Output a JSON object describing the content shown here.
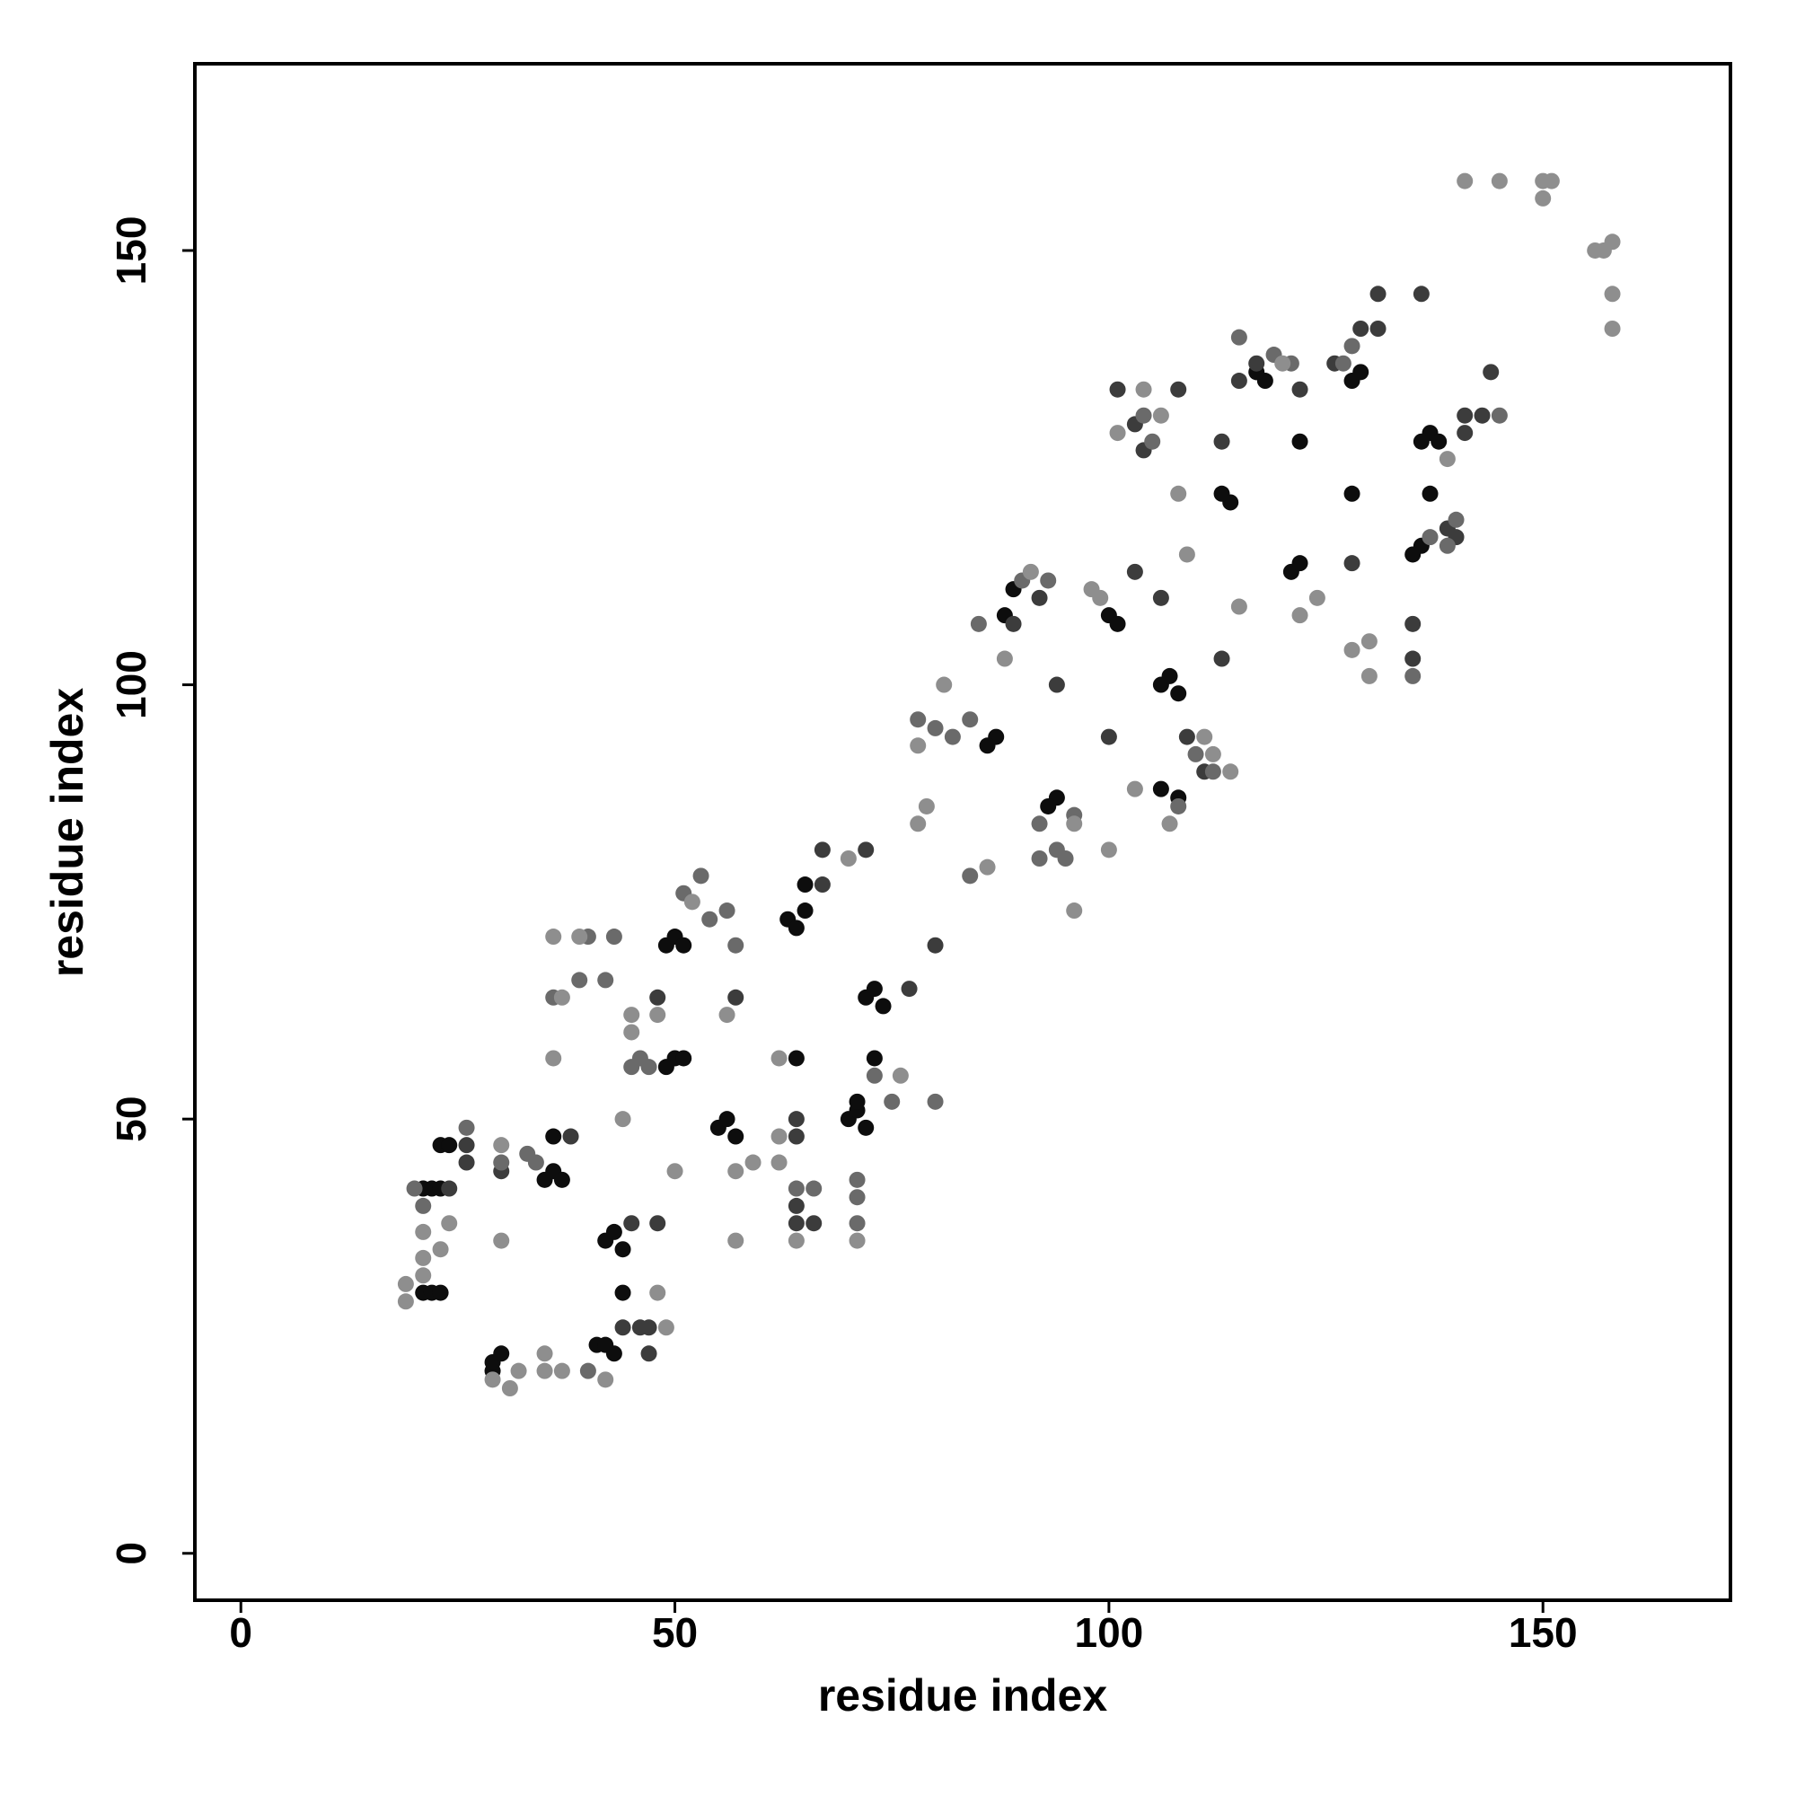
{
  "chart_data": {
    "type": "scatter",
    "xlabel": "residue index",
    "ylabel": "residue index",
    "xlim": [
      -5.3,
      171.6
    ],
    "ylim": [
      -5.4,
      171.5
    ],
    "xticks": [
      0,
      50,
      100,
      150
    ],
    "yticks": [
      0,
      50,
      100,
      150
    ],
    "series": [
      {
        "color": "#0d0d0d",
        "x": [
          21,
          22,
          23,
          23,
          24,
          21,
          22,
          23,
          29,
          29,
          30,
          35,
          36,
          37,
          36,
          41,
          42,
          43,
          42,
          43,
          44,
          44,
          50,
          49,
          51,
          49,
          50,
          51,
          55,
          56,
          57,
          64,
          63,
          64,
          65,
          65,
          72,
          73,
          74,
          70,
          71,
          72,
          73,
          87,
          86,
          88,
          89,
          94,
          93,
          100,
          101,
          106,
          107,
          108,
          106,
          108,
          114,
          113,
          118,
          117,
          121,
          122,
          122,
          128,
          128,
          129,
          136,
          135,
          137,
          136,
          138,
          137,
          71
        ],
        "values": [
          42,
          42,
          42,
          47,
          47,
          30,
          30,
          30,
          21,
          22,
          23,
          43,
          44,
          43,
          48,
          24,
          24,
          23,
          36,
          37,
          35,
          30,
          57,
          56,
          57,
          70,
          71,
          70,
          49,
          50,
          48,
          57,
          73,
          72,
          74,
          77,
          64,
          65,
          63,
          50,
          51,
          49,
          57,
          94,
          93,
          108,
          111,
          87,
          86,
          108,
          107,
          100,
          101,
          99,
          88,
          87,
          121,
          122,
          135,
          136,
          113,
          114,
          128,
          122,
          135,
          136,
          116,
          115,
          129,
          128,
          128,
          122,
          52
        ]
      },
      {
        "color": "#3c3c3c",
        "x": [
          24,
          26,
          26,
          30,
          38,
          45,
          46,
          47,
          47,
          48,
          48,
          57,
          64,
          64,
          64,
          66,
          67,
          67,
          72,
          77,
          80,
          89,
          92,
          94,
          100,
          103,
          106,
          113,
          109,
          111,
          113,
          115,
          117,
          122,
          126,
          129,
          131,
          131,
          128,
          135,
          135,
          139,
          140,
          141,
          141,
          144,
          143,
          136,
          101,
          103,
          104,
          108,
          64,
          44
        ],
        "values": [
          42,
          47,
          45,
          44,
          48,
          38,
          26,
          26,
          23,
          38,
          64,
          64,
          48,
          50,
          38,
          38,
          77,
          81,
          81,
          65,
          70,
          107,
          110,
          100,
          94,
          113,
          110,
          103,
          94,
          90,
          128,
          135,
          137,
          134,
          137,
          141,
          141,
          145,
          114,
          103,
          107,
          118,
          117,
          129,
          131,
          136,
          131,
          145,
          134,
          130,
          127,
          134,
          40,
          26
        ]
      },
      {
        "color": "#6a6a6a",
        "x": [
          20,
          21,
          26,
          30,
          34,
          33,
          40,
          36,
          39,
          42,
          43,
          40,
          45,
          46,
          47,
          51,
          53,
          54,
          56,
          57,
          64,
          66,
          71,
          71,
          71,
          73,
          75,
          80,
          78,
          80,
          82,
          84,
          84,
          85,
          90,
          93,
          92,
          94,
          95,
          104,
          105,
          108,
          110,
          112,
          115,
          119,
          121,
          127,
          128,
          135,
          139,
          140,
          145,
          137,
          92,
          96
        ],
        "values": [
          42,
          40,
          49,
          45,
          45,
          46,
          21,
          64,
          66,
          66,
          71,
          71,
          56,
          57,
          56,
          76,
          78,
          73,
          74,
          70,
          42,
          42,
          38,
          41,
          43,
          55,
          52,
          52,
          96,
          95,
          94,
          96,
          78,
          107,
          112,
          112,
          84,
          81,
          80,
          131,
          128,
          86,
          92,
          90,
          140,
          138,
          137,
          137,
          139,
          101,
          116,
          119,
          131,
          117,
          80,
          85
        ]
      },
      {
        "color": "#8e8e8e",
        "x": [
          19,
          19,
          21,
          21,
          21,
          23,
          24,
          30,
          30,
          31,
          32,
          29,
          35,
          35,
          37,
          36,
          36,
          37,
          39,
          42,
          44,
          45,
          45,
          48,
          48,
          49,
          50,
          52,
          56,
          57,
          57,
          59,
          62,
          62,
          62,
          64,
          70,
          71,
          76,
          78,
          79,
          78,
          81,
          86,
          88,
          91,
          96,
          96,
          98,
          100,
          103,
          101,
          106,
          108,
          109,
          107,
          112,
          114,
          115,
          120,
          122,
          124,
          130,
          130,
          128,
          139,
          141,
          145,
          150,
          151,
          150,
          156,
          157,
          158,
          158,
          158,
          111,
          104,
          99
        ],
        "values": [
          31,
          29,
          37,
          34,
          32,
          35,
          38,
          47,
          36,
          19,
          21,
          20,
          23,
          21,
          21,
          57,
          71,
          64,
          71,
          20,
          50,
          60,
          62,
          62,
          30,
          26,
          44,
          75,
          62,
          36,
          44,
          45,
          57,
          48,
          45,
          36,
          80,
          36,
          55,
          84,
          86,
          93,
          100,
          79,
          103,
          113,
          74,
          84,
          111,
          81,
          88,
          129,
          131,
          122,
          115,
          84,
          92,
          90,
          109,
          137,
          108,
          110,
          105,
          101,
          104,
          126,
          158,
          158,
          158,
          158,
          156,
          150,
          150,
          151,
          145,
          141,
          94,
          134,
          110
        ]
      }
    ]
  }
}
